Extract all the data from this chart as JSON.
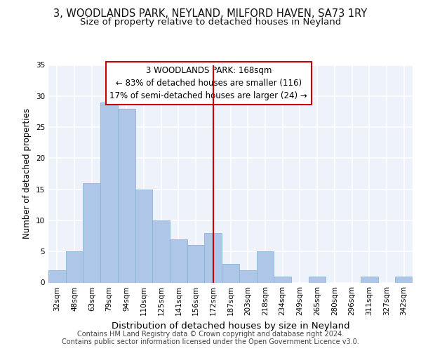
{
  "title_line1": "3, WOODLANDS PARK, NEYLAND, MILFORD HAVEN, SA73 1RY",
  "title_line2": "Size of property relative to detached houses in Neyland",
  "xlabel": "Distribution of detached houses by size in Neyland",
  "ylabel": "Number of detached properties",
  "categories": [
    "32sqm",
    "48sqm",
    "63sqm",
    "79sqm",
    "94sqm",
    "110sqm",
    "125sqm",
    "141sqm",
    "156sqm",
    "172sqm",
    "187sqm",
    "203sqm",
    "218sqm",
    "234sqm",
    "249sqm",
    "265sqm",
    "280sqm",
    "296sqm",
    "311sqm",
    "327sqm",
    "342sqm"
  ],
  "values": [
    2,
    5,
    16,
    29,
    28,
    15,
    10,
    7,
    6,
    8,
    3,
    2,
    5,
    1,
    0,
    1,
    0,
    0,
    1,
    0,
    1
  ],
  "bar_color": "#aec6e8",
  "bar_edge_color": "#8ab4d8",
  "vline_x_index": 9,
  "vline_color": "#cc0000",
  "annotation_text": "3 WOODLANDS PARK: 168sqm\n← 83% of detached houses are smaller (116)\n17% of semi-detached houses are larger (24) →",
  "ylim": [
    0,
    35
  ],
  "yticks": [
    0,
    5,
    10,
    15,
    20,
    25,
    30,
    35
  ],
  "background_color": "#eef2fb",
  "grid_color": "#ffffff",
  "footer_line1": "Contains HM Land Registry data © Crown copyright and database right 2024.",
  "footer_line2": "Contains public sector information licensed under the Open Government Licence v3.0.",
  "title_fontsize": 10.5,
  "subtitle_fontsize": 9.5,
  "xlabel_fontsize": 9.5,
  "ylabel_fontsize": 8.5,
  "tick_fontsize": 7.5,
  "annotation_fontsize": 8.5,
  "footer_fontsize": 7.0
}
